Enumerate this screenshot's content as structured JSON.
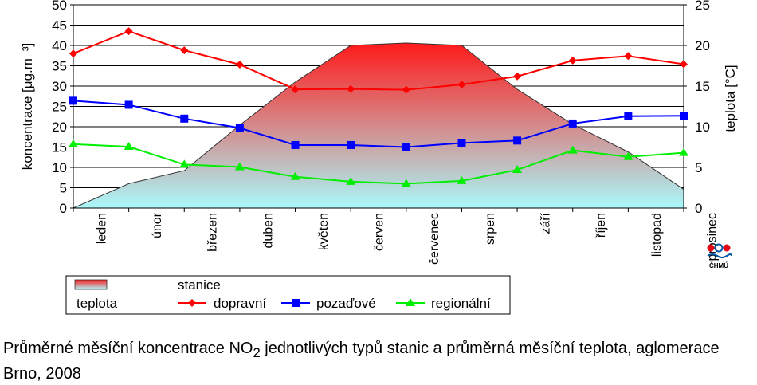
{
  "caption": {
    "pre": "Průměrné měsíční koncentrace NO",
    "sub": "2",
    "post": " jednotlivých typů stanic a průměrná měsíční teplota, aglomerace Brno, 2008"
  },
  "logo": {
    "text": "ČHMÚ",
    "icon": "chmu-logo-icon"
  },
  "chart_data": {
    "type": "line",
    "title": "",
    "categories": [
      "leden",
      "únor",
      "březen",
      "duben",
      "květen",
      "červen",
      "červenec",
      "srpen",
      "září",
      "říjen",
      "listopad",
      "prosinec"
    ],
    "ylabel": "koncentrace [μg.m⁻³]",
    "y2label": "teplota [°C]",
    "ylim": [
      0,
      50
    ],
    "y2lim": [
      0,
      25
    ],
    "yticks": [
      "0",
      "5",
      "10",
      "15",
      "20",
      "25",
      "30",
      "35",
      "40",
      "45",
      "50"
    ],
    "y2ticks": [
      "0",
      "5",
      "10",
      "15",
      "20",
      "25"
    ],
    "grid": true,
    "legend": {
      "area_label": "teplota",
      "group_title": "stanice",
      "placement": "bottom-left"
    },
    "area": {
      "name": "teplota",
      "axis": "right",
      "values": [
        0.0,
        3.0,
        4.6,
        10.2,
        15.5,
        20.0,
        20.3,
        20.0,
        14.6,
        10.3,
        6.9,
        2.3
      ],
      "gradient_top": "#ff1a1a",
      "gradient_bottom": "#aaf8fa"
    },
    "series": [
      {
        "name": "dopravní",
        "color": "#ff0000",
        "marker": "diamond",
        "values": [
          38.0,
          43.5,
          38.8,
          35.3,
          29.2,
          29.3,
          29.1,
          30.4,
          32.4,
          36.3,
          37.4,
          35.4
        ]
      },
      {
        "name": "pozaďové",
        "color": "#0000ff",
        "marker": "square",
        "values": [
          26.4,
          25.4,
          22.0,
          19.7,
          15.5,
          15.5,
          15.0,
          16.0,
          16.6,
          20.8,
          22.6,
          22.7
        ]
      },
      {
        "name": "regionální",
        "color": "#00ee00",
        "marker": "triangle",
        "values": [
          15.7,
          15.1,
          10.7,
          10.1,
          7.7,
          6.5,
          6.0,
          6.7,
          9.4,
          14.2,
          12.6,
          13.6
        ]
      }
    ]
  }
}
